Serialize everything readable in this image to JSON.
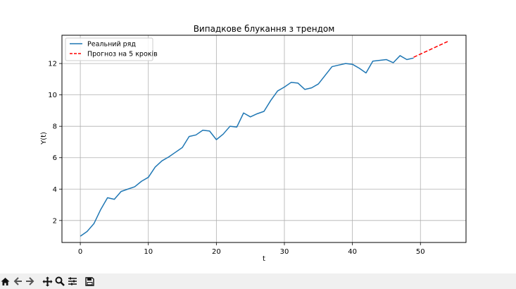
{
  "chart_data": {
    "type": "line",
    "title": "Випадкове блукання з трендом",
    "xlabel": "t",
    "ylabel": "Y(t)",
    "xlim": [
      -2.7,
      56.7
    ],
    "ylim": [
      0.6,
      13.8
    ],
    "xticks": [
      0,
      10,
      20,
      30,
      40,
      50
    ],
    "yticks": [
      2,
      4,
      6,
      8,
      10,
      12
    ],
    "grid": true,
    "legend_position": "top-left",
    "series": [
      {
        "name": "Реальний ряд",
        "style": "solid",
        "color": "#1f77b4",
        "x": [
          0,
          1,
          2,
          3,
          4,
          5,
          6,
          7,
          8,
          9,
          10,
          11,
          12,
          13,
          14,
          15,
          16,
          17,
          18,
          19,
          20,
          21,
          22,
          23,
          24,
          25,
          26,
          27,
          28,
          29,
          30,
          31,
          32,
          33,
          34,
          35,
          36,
          37,
          38,
          39,
          40,
          41,
          42,
          43,
          44,
          45,
          46,
          47,
          48,
          49
        ],
        "y": [
          1.0,
          1.3,
          1.8,
          2.7,
          3.45,
          3.35,
          3.85,
          4.0,
          4.15,
          4.5,
          4.75,
          5.4,
          5.8,
          6.05,
          6.35,
          6.65,
          7.35,
          7.45,
          7.75,
          7.7,
          7.15,
          7.5,
          8.0,
          7.95,
          8.85,
          8.6,
          8.8,
          8.95,
          9.65,
          10.25,
          10.5,
          10.8,
          10.75,
          10.35,
          10.45,
          10.7,
          11.25,
          11.8,
          11.9,
          12.0,
          11.95,
          11.7,
          11.4,
          12.15,
          12.2,
          12.25,
          12.05,
          12.5,
          12.25,
          12.35
        ]
      },
      {
        "name": "Прогноз на 5 кроків",
        "style": "dashed",
        "color": "#ff0000",
        "x": [
          49,
          50,
          51,
          52,
          53,
          54
        ],
        "y": [
          12.4,
          12.6,
          12.8,
          13.0,
          13.2,
          13.4
        ]
      }
    ]
  },
  "toolbar": {
    "coords": ""
  }
}
